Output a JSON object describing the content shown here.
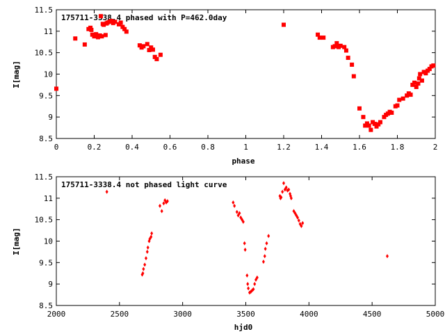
{
  "chart_data": [
    {
      "type": "scatter",
      "title": "175711-3338.4 phased with P=462.0day",
      "xlabel": "phase",
      "ylabel": "I[mag]",
      "xlim": [
        0,
        2
      ],
      "ylim": [
        11.5,
        8.5
      ],
      "y_inverted": true,
      "xticks": [
        0,
        0.2,
        0.4,
        0.6,
        0.8,
        1,
        1.2,
        1.4,
        1.6,
        1.8,
        2
      ],
      "xtick_labels": [
        "0",
        "0.2",
        "0.4",
        "0.6",
        "0.8",
        "1",
        "1.2",
        "1.4",
        "1.6",
        "1.8",
        "2"
      ],
      "yticks": [
        8.5,
        9,
        9.5,
        10,
        10.5,
        11,
        11.5
      ],
      "ytick_labels": [
        "8.5",
        "9",
        "9.5",
        "10",
        "10.5",
        "11",
        "11.5"
      ],
      "grid": false,
      "marker_color": "#ff0000",
      "points": [
        [
          0.0,
          9.66
        ],
        [
          0.1,
          10.83
        ],
        [
          0.15,
          10.69
        ],
        [
          0.17,
          11.05
        ],
        [
          0.18,
          11.08
        ],
        [
          0.185,
          11.03
        ],
        [
          0.19,
          10.92
        ],
        [
          0.2,
          10.88
        ],
        [
          0.21,
          10.93
        ],
        [
          0.22,
          10.86
        ],
        [
          0.23,
          10.9
        ],
        [
          0.235,
          11.35
        ],
        [
          0.24,
          10.88
        ],
        [
          0.245,
          11.17
        ],
        [
          0.25,
          11.15
        ],
        [
          0.26,
          10.91
        ],
        [
          0.265,
          11.18
        ],
        [
          0.27,
          11.2
        ],
        [
          0.28,
          11.22
        ],
        [
          0.29,
          11.24
        ],
        [
          0.3,
          11.19
        ],
        [
          0.31,
          11.22
        ],
        [
          0.33,
          11.16
        ],
        [
          0.34,
          11.2
        ],
        [
          0.35,
          11.1
        ],
        [
          0.36,
          11.05
        ],
        [
          0.37,
          10.99
        ],
        [
          0.44,
          10.67
        ],
        [
          0.45,
          10.62
        ],
        [
          0.46,
          10.65
        ],
        [
          0.48,
          10.7
        ],
        [
          0.49,
          10.56
        ],
        [
          0.5,
          10.62
        ],
        [
          0.51,
          10.57
        ],
        [
          0.52,
          10.4
        ],
        [
          0.53,
          10.35
        ],
        [
          0.55,
          10.45
        ],
        [
          1.2,
          11.15
        ],
        [
          1.38,
          10.92
        ],
        [
          1.39,
          10.85
        ],
        [
          1.41,
          10.85
        ],
        [
          1.46,
          10.63
        ],
        [
          1.47,
          10.65
        ],
        [
          1.48,
          10.72
        ],
        [
          1.49,
          10.63
        ],
        [
          1.5,
          10.66
        ],
        [
          1.52,
          10.63
        ],
        [
          1.53,
          10.55
        ],
        [
          1.54,
          10.38
        ],
        [
          1.56,
          10.22
        ],
        [
          1.57,
          9.95
        ],
        [
          1.6,
          9.2
        ],
        [
          1.62,
          9.0
        ],
        [
          1.63,
          8.8
        ],
        [
          1.64,
          8.85
        ],
        [
          1.65,
          8.8
        ],
        [
          1.66,
          8.7
        ],
        [
          1.67,
          8.88
        ],
        [
          1.68,
          8.84
        ],
        [
          1.69,
          8.78
        ],
        [
          1.7,
          8.83
        ],
        [
          1.71,
          8.88
        ],
        [
          1.73,
          9.0
        ],
        [
          1.74,
          9.05
        ],
        [
          1.75,
          9.08
        ],
        [
          1.76,
          9.12
        ],
        [
          1.77,
          9.1
        ],
        [
          1.79,
          9.25
        ],
        [
          1.8,
          9.27
        ],
        [
          1.81,
          9.4
        ],
        [
          1.83,
          9.43
        ],
        [
          1.85,
          9.5
        ],
        [
          1.86,
          9.55
        ],
        [
          1.87,
          9.52
        ],
        [
          1.88,
          9.75
        ],
        [
          1.89,
          9.8
        ],
        [
          1.9,
          9.7
        ],
        [
          1.91,
          9.78
        ],
        [
          1.915,
          9.9
        ],
        [
          1.92,
          10.0
        ],
        [
          1.93,
          9.85
        ],
        [
          1.94,
          10.05
        ],
        [
          1.95,
          10.02
        ],
        [
          1.96,
          10.08
        ],
        [
          1.97,
          10.12
        ],
        [
          1.98,
          10.18
        ],
        [
          1.99,
          10.2
        ]
      ]
    },
    {
      "type": "scatter",
      "title": "175711-3338.4 not phased light curve",
      "xlabel": "hjd0",
      "ylabel": "I[mag]",
      "xlim": [
        2000,
        5000
      ],
      "ylim": [
        11.5,
        8.5
      ],
      "y_inverted": true,
      "xticks": [
        2000,
        2500,
        3000,
        3500,
        4000,
        4500,
        5000
      ],
      "xtick_labels": [
        "2000",
        "2500",
        "3000",
        "3500",
        "4000",
        "4500",
        "5000"
      ],
      "yticks": [
        8.5,
        9,
        9.5,
        10,
        10.5,
        11,
        11.5
      ],
      "ytick_labels": [
        "8.5",
        "9",
        "9.5",
        "10",
        "10.5",
        "11",
        "11.5"
      ],
      "grid": false,
      "marker_color": "#ff0000",
      "points": [
        [
          2400,
          11.15
        ],
        [
          2680,
          9.22
        ],
        [
          2685,
          9.25
        ],
        [
          2690,
          9.35
        ],
        [
          2700,
          9.45
        ],
        [
          2710,
          9.6
        ],
        [
          2720,
          9.75
        ],
        [
          2725,
          9.85
        ],
        [
          2735,
          10.0
        ],
        [
          2740,
          10.05
        ],
        [
          2750,
          10.1
        ],
        [
          2755,
          10.18
        ],
        [
          2820,
          10.82
        ],
        [
          2835,
          10.7
        ],
        [
          2850,
          10.88
        ],
        [
          2860,
          10.95
        ],
        [
          2870,
          10.9
        ],
        [
          2880,
          10.93
        ],
        [
          3400,
          10.9
        ],
        [
          3410,
          10.82
        ],
        [
          3430,
          10.68
        ],
        [
          3440,
          10.6
        ],
        [
          3450,
          10.65
        ],
        [
          3460,
          10.55
        ],
        [
          3470,
          10.5
        ],
        [
          3480,
          10.45
        ],
        [
          3490,
          9.95
        ],
        [
          3495,
          9.8
        ],
        [
          3510,
          9.2
        ],
        [
          3515,
          9.0
        ],
        [
          3520,
          8.9
        ],
        [
          3530,
          8.8
        ],
        [
          3540,
          8.82
        ],
        [
          3550,
          8.85
        ],
        [
          3560,
          8.88
        ],
        [
          3570,
          9.0
        ],
        [
          3580,
          9.1
        ],
        [
          3590,
          9.15
        ],
        [
          3640,
          9.52
        ],
        [
          3650,
          9.65
        ],
        [
          3655,
          9.82
        ],
        [
          3665,
          9.95
        ],
        [
          3680,
          10.12
        ],
        [
          3770,
          11.05
        ],
        [
          3775,
          11.0
        ],
        [
          3780,
          11.02
        ],
        [
          3790,
          11.15
        ],
        [
          3800,
          11.35
        ],
        [
          3810,
          11.2
        ],
        [
          3815,
          11.22
        ],
        [
          3820,
          11.25
        ],
        [
          3830,
          11.18
        ],
        [
          3840,
          11.2
        ],
        [
          3850,
          11.1
        ],
        [
          3855,
          11.05
        ],
        [
          3860,
          11.0
        ],
        [
          3880,
          10.7
        ],
        [
          3890,
          10.65
        ],
        [
          3900,
          10.6
        ],
        [
          3910,
          10.55
        ],
        [
          3920,
          10.48
        ],
        [
          3930,
          10.4
        ],
        [
          3940,
          10.35
        ],
        [
          3950,
          10.42
        ],
        [
          4620,
          9.65
        ]
      ]
    }
  ]
}
